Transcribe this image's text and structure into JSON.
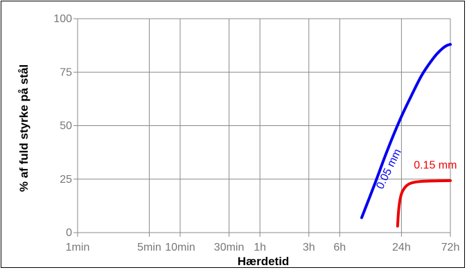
{
  "chart_data": {
    "type": "line",
    "title": "",
    "xlabel": "Hærdetid",
    "ylabel": "% af fuld styrke på stål",
    "x_scale": "log",
    "x_ticks": [
      {
        "label": "1min",
        "minutes": 1
      },
      {
        "label": "5min",
        "minutes": 5
      },
      {
        "label": "10min",
        "minutes": 10
      },
      {
        "label": "30min",
        "minutes": 30
      },
      {
        "label": "1h",
        "minutes": 60
      },
      {
        "label": "3h",
        "minutes": 180
      },
      {
        "label": "6h",
        "minutes": 360
      },
      {
        "label": "24h",
        "minutes": 1440
      },
      {
        "label": "72h",
        "minutes": 4320
      }
    ],
    "xlim_minutes": [
      1,
      4320
    ],
    "y_ticks": [
      0,
      25,
      50,
      75,
      100
    ],
    "ylim": [
      0,
      100
    ],
    "grid": true,
    "series": [
      {
        "name": "0.05 mm",
        "color": "#0000ee",
        "x_minutes": [
          590,
          780,
          1040,
          1400,
          1800,
          2300,
          3000,
          3600,
          4000,
          4320
        ],
        "y": [
          7,
          22,
          38,
          53,
          64,
          74,
          82,
          86,
          87.5,
          88
        ]
      },
      {
        "name": "0.15 mm",
        "color": "#ee0000",
        "x_minutes": [
          1320,
          1350,
          1390,
          1450,
          1550,
          1700,
          1950,
          2400,
          3200,
          4320
        ],
        "y": [
          3,
          10,
          15,
          18.5,
          21,
          22.7,
          23.6,
          24,
          24.2,
          24.3
        ]
      }
    ]
  }
}
